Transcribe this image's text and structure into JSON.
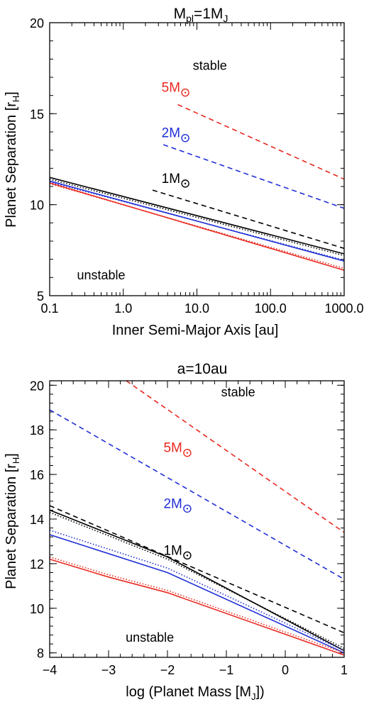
{
  "chart_data": [
    {
      "type": "line",
      "title": "M",
      "title_sub": "pl",
      "title_tail": "=1M",
      "title_tail_sub": "J",
      "xlabel": "Inner Semi-Major Axis [au]",
      "ylabel": "Planet Separation [r",
      "ylabel_sub": "H",
      "ylabel_tail": "]",
      "x_scale": "log",
      "xlim": [
        0.1,
        1000
      ],
      "ylim": [
        5,
        20
      ],
      "xticks": [
        {
          "value": 0.1,
          "label": "0.1"
        },
        {
          "value": 1,
          "label": "1.0"
        },
        {
          "value": 10,
          "label": "10.0"
        },
        {
          "value": 100,
          "label": "100.0"
        },
        {
          "value": 1000,
          "label": "1000.0"
        }
      ],
      "yticks": [
        {
          "value": 5,
          "label": "5"
        },
        {
          "value": 10,
          "label": "10"
        },
        {
          "value": 15,
          "label": "15"
        },
        {
          "value": 20,
          "label": "20"
        }
      ],
      "region_labels": [
        {
          "text": "stable",
          "x": 15,
          "y": 17.4
        },
        {
          "text": "unstable",
          "x": 0.5,
          "y": 5.9
        }
      ],
      "series": [
        {
          "color": "#e8291f",
          "dash": "dashed",
          "x": [
            5.5,
            1000
          ],
          "y": [
            15.5,
            11.4
          ]
        },
        {
          "color": "#1f2fd6",
          "dash": "dashed",
          "x": [
            3.5,
            1000
          ],
          "y": [
            13.3,
            9.8
          ]
        },
        {
          "color": "#000000",
          "dash": "dashed",
          "x": [
            2.5,
            1000
          ],
          "y": [
            10.8,
            7.6
          ]
        },
        {
          "color": "#000000",
          "dash": "solid",
          "x": [
            0.1,
            1000
          ],
          "y": [
            11.5,
            7.3
          ]
        },
        {
          "color": "#000000",
          "dash": "dotted",
          "x": [
            0.1,
            1000
          ],
          "y": [
            11.4,
            7.2
          ]
        },
        {
          "color": "#1f2fd6",
          "dash": "solid",
          "x": [
            0.1,
            1000
          ],
          "y": [
            11.3,
            6.9
          ]
        },
        {
          "color": "#1f2fd6",
          "dash": "dotted",
          "x": [
            0.1,
            1000
          ],
          "y": [
            11.25,
            6.95
          ]
        },
        {
          "color": "#e8291f",
          "dash": "solid",
          "x": [
            0.1,
            1000
          ],
          "y": [
            11.2,
            6.4
          ]
        },
        {
          "color": "#e8291f",
          "dash": "dotted",
          "x": [
            0.1,
            1000
          ],
          "y": [
            11.15,
            6.5
          ]
        }
      ],
      "annotations": [
        {
          "text": "5M",
          "color": "#e8291f",
          "x": 6.5,
          "y": 16.2
        },
        {
          "text": "2M",
          "color": "#1f2fd6",
          "x": 6.5,
          "y": 13.7
        },
        {
          "text": "1M",
          "color": "#000000",
          "x": 6.5,
          "y": 11.2
        }
      ]
    },
    {
      "type": "line",
      "title": "a=10au",
      "xlabel": "log (Planet Mass [M",
      "xlabel_sub": "J",
      "xlabel_tail": "])",
      "ylabel": "Planet Separation [r",
      "ylabel_sub": "H",
      "ylabel_tail": "]",
      "x_scale": "linear",
      "xlim": [
        -4,
        1
      ],
      "ylim": [
        7.8,
        20.2
      ],
      "xticks": [
        {
          "value": -4,
          "label": "−4"
        },
        {
          "value": -3,
          "label": "−3"
        },
        {
          "value": -2,
          "label": "−2"
        },
        {
          "value": -1,
          "label": "−1"
        },
        {
          "value": 0,
          "label": "0"
        },
        {
          "value": 1,
          "label": "1"
        }
      ],
      "yticks": [
        {
          "value": 8,
          "label": "8"
        },
        {
          "value": 10,
          "label": "10"
        },
        {
          "value": 12,
          "label": "12"
        },
        {
          "value": 14,
          "label": "14"
        },
        {
          "value": 16,
          "label": "16"
        },
        {
          "value": 18,
          "label": "18"
        },
        {
          "value": 20,
          "label": "20"
        }
      ],
      "region_labels": [
        {
          "text": "stable",
          "x": -0.8,
          "y": 19.5
        },
        {
          "text": "unstable",
          "x": -2.3,
          "y": 8.5
        }
      ],
      "series": [
        {
          "color": "#e8291f",
          "dash": "dashed",
          "x": [
            -2.7,
            1
          ],
          "y": [
            20.2,
            13.4
          ]
        },
        {
          "color": "#1f2fd6",
          "dash": "dashed",
          "x": [
            -4,
            1
          ],
          "y": [
            18.9,
            11.3
          ]
        },
        {
          "color": "#000000",
          "dash": "dashed",
          "x": [
            -4,
            1
          ],
          "y": [
            14.6,
            8.9
          ]
        },
        {
          "color": "#000000",
          "dash": "solid",
          "x": [
            -4,
            -2,
            1
          ],
          "y": [
            14.4,
            12.3,
            8.1
          ]
        },
        {
          "color": "#000000",
          "dash": "dotted",
          "x": [
            -4,
            -2,
            1
          ],
          "y": [
            14.3,
            12.2,
            8.2
          ]
        },
        {
          "color": "#1f2fd6",
          "dash": "solid",
          "x": [
            -4,
            -2,
            1
          ],
          "y": [
            13.3,
            11.6,
            8.0
          ]
        },
        {
          "color": "#1f2fd6",
          "dash": "dotted",
          "x": [
            -4,
            -2,
            1
          ],
          "y": [
            13.5,
            11.8,
            8.1
          ]
        },
        {
          "color": "#e8291f",
          "dash": "solid",
          "x": [
            -4,
            -3,
            -2,
            1
          ],
          "y": [
            12.2,
            11.4,
            10.7,
            7.9
          ]
        },
        {
          "color": "#e8291f",
          "dash": "dotted",
          "x": [
            -4,
            -3,
            -2,
            1
          ],
          "y": [
            12.3,
            11.5,
            10.8,
            8.0
          ]
        }
      ],
      "annotations": [
        {
          "text": "5M",
          "color": "#e8291f",
          "x": -1.7,
          "y": 17.0
        },
        {
          "text": "2M",
          "color": "#1f2fd6",
          "x": -1.7,
          "y": 14.5
        },
        {
          "text": "1M",
          "color": "#000000",
          "x": -1.7,
          "y": 12.4
        }
      ]
    }
  ]
}
